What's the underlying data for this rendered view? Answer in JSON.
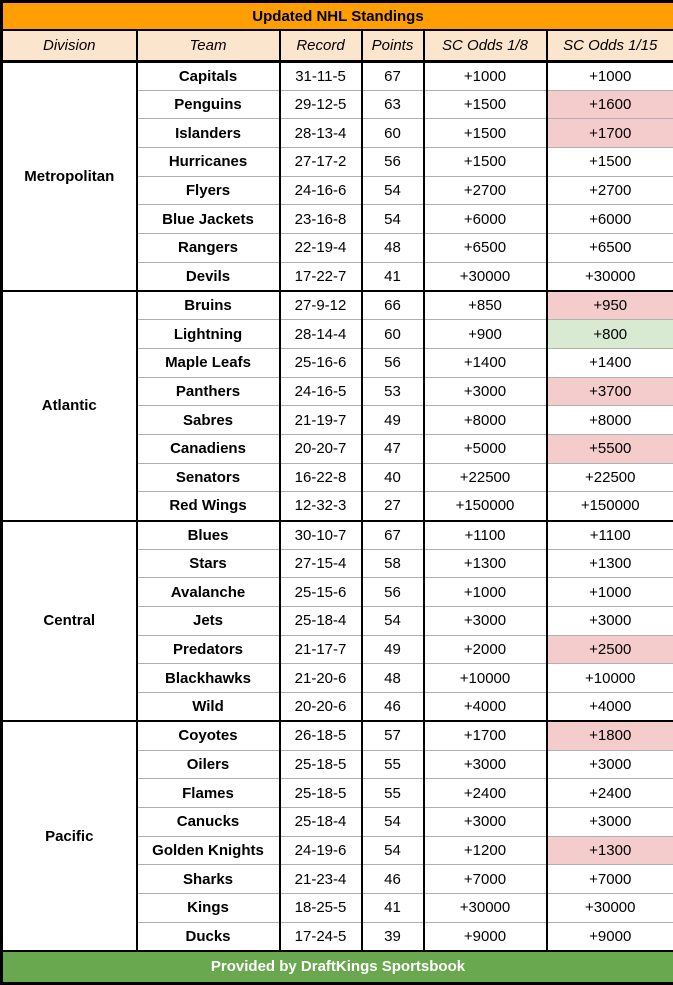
{
  "title": "Updated NHL Standings",
  "footer": "Provided by DraftKings Sportsbook",
  "columns": [
    "Division",
    "Team",
    "Record",
    "Points",
    "SC Odds 1/8",
    "SC Odds 1/15"
  ],
  "colors": {
    "title_bg": "#FF9E00",
    "header_bg": "#FCE5CD",
    "red_bg": "#F4CCCC",
    "green_bg": "#D9EAD3",
    "footer_bg": "#6AA84F",
    "border_dark": "#000000",
    "border_light": "#B0B0B0",
    "footer_text": "#FFFFFF"
  },
  "chart_data": {
    "type": "table",
    "title": "Updated NHL Standings",
    "columns": [
      "Division",
      "Team",
      "Record",
      "Points",
      "SC Odds 1/8",
      "SC Odds 1/15"
    ],
    "divisions": [
      {
        "name": "Metropolitan",
        "teams": [
          {
            "team": "Capitals",
            "record": "31-11-5",
            "points": "67",
            "sc_odds_1_8": "+1000",
            "sc_odds_1_15": "+1000",
            "odds_1_15_highlight": "none"
          },
          {
            "team": "Penguins",
            "record": "29-12-5",
            "points": "63",
            "sc_odds_1_8": "+1500",
            "sc_odds_1_15": "+1600",
            "odds_1_15_highlight": "red"
          },
          {
            "team": "Islanders",
            "record": "28-13-4",
            "points": "60",
            "sc_odds_1_8": "+1500",
            "sc_odds_1_15": "+1700",
            "odds_1_15_highlight": "red"
          },
          {
            "team": "Hurricanes",
            "record": "27-17-2",
            "points": "56",
            "sc_odds_1_8": "+1500",
            "sc_odds_1_15": "+1500",
            "odds_1_15_highlight": "none"
          },
          {
            "team": "Flyers",
            "record": "24-16-6",
            "points": "54",
            "sc_odds_1_8": "+2700",
            "sc_odds_1_15": "+2700",
            "odds_1_15_highlight": "none"
          },
          {
            "team": "Blue Jackets",
            "record": "23-16-8",
            "points": "54",
            "sc_odds_1_8": "+6000",
            "sc_odds_1_15": "+6000",
            "odds_1_15_highlight": "none"
          },
          {
            "team": "Rangers",
            "record": "22-19-4",
            "points": "48",
            "sc_odds_1_8": "+6500",
            "sc_odds_1_15": "+6500",
            "odds_1_15_highlight": "none"
          },
          {
            "team": "Devils",
            "record": "17-22-7",
            "points": "41",
            "sc_odds_1_8": "+30000",
            "sc_odds_1_15": "+30000",
            "odds_1_15_highlight": "none"
          }
        ]
      },
      {
        "name": "Atlantic",
        "teams": [
          {
            "team": "Bruins",
            "record": "27-9-12",
            "points": "66",
            "sc_odds_1_8": "+850",
            "sc_odds_1_15": "+950",
            "odds_1_15_highlight": "red"
          },
          {
            "team": "Lightning",
            "record": "28-14-4",
            "points": "60",
            "sc_odds_1_8": "+900",
            "sc_odds_1_15": "+800",
            "odds_1_15_highlight": "green"
          },
          {
            "team": "Maple Leafs",
            "record": "25-16-6",
            "points": "56",
            "sc_odds_1_8": "+1400",
            "sc_odds_1_15": "+1400",
            "odds_1_15_highlight": "none"
          },
          {
            "team": "Panthers",
            "record": "24-16-5",
            "points": "53",
            "sc_odds_1_8": "+3000",
            "sc_odds_1_15": "+3700",
            "odds_1_15_highlight": "red"
          },
          {
            "team": "Sabres",
            "record": "21-19-7",
            "points": "49",
            "sc_odds_1_8": "+8000",
            "sc_odds_1_15": "+8000",
            "odds_1_15_highlight": "none"
          },
          {
            "team": "Canadiens",
            "record": "20-20-7",
            "points": "47",
            "sc_odds_1_8": "+5000",
            "sc_odds_1_15": "+5500",
            "odds_1_15_highlight": "red"
          },
          {
            "team": "Senators",
            "record": "16-22-8",
            "points": "40",
            "sc_odds_1_8": "+22500",
            "sc_odds_1_15": "+22500",
            "odds_1_15_highlight": "none"
          },
          {
            "team": "Red Wings",
            "record": "12-32-3",
            "points": "27",
            "sc_odds_1_8": "+150000",
            "sc_odds_1_15": "+150000",
            "odds_1_15_highlight": "none"
          }
        ]
      },
      {
        "name": "Central",
        "teams": [
          {
            "team": "Blues",
            "record": "30-10-7",
            "points": "67",
            "sc_odds_1_8": "+1100",
            "sc_odds_1_15": "+1100",
            "odds_1_15_highlight": "none"
          },
          {
            "team": "Stars",
            "record": "27-15-4",
            "points": "58",
            "sc_odds_1_8": "+1300",
            "sc_odds_1_15": "+1300",
            "odds_1_15_highlight": "none"
          },
          {
            "team": "Avalanche",
            "record": "25-15-6",
            "points": "56",
            "sc_odds_1_8": "+1000",
            "sc_odds_1_15": "+1000",
            "odds_1_15_highlight": "none"
          },
          {
            "team": "Jets",
            "record": "25-18-4",
            "points": "54",
            "sc_odds_1_8": "+3000",
            "sc_odds_1_15": "+3000",
            "odds_1_15_highlight": "none"
          },
          {
            "team": "Predators",
            "record": "21-17-7",
            "points": "49",
            "sc_odds_1_8": "+2000",
            "sc_odds_1_15": "+2500",
            "odds_1_15_highlight": "red"
          },
          {
            "team": "Blackhawks",
            "record": "21-20-6",
            "points": "48",
            "sc_odds_1_8": "+10000",
            "sc_odds_1_15": "+10000",
            "odds_1_15_highlight": "none"
          },
          {
            "team": "Wild",
            "record": "20-20-6",
            "points": "46",
            "sc_odds_1_8": "+4000",
            "sc_odds_1_15": "+4000",
            "odds_1_15_highlight": "none"
          }
        ]
      },
      {
        "name": "Pacific",
        "teams": [
          {
            "team": "Coyotes",
            "record": "26-18-5",
            "points": "57",
            "sc_odds_1_8": "+1700",
            "sc_odds_1_15": "+1800",
            "odds_1_15_highlight": "red"
          },
          {
            "team": "Oilers",
            "record": "25-18-5",
            "points": "55",
            "sc_odds_1_8": "+3000",
            "sc_odds_1_15": "+3000",
            "odds_1_15_highlight": "none"
          },
          {
            "team": "Flames",
            "record": "25-18-5",
            "points": "55",
            "sc_odds_1_8": "+2400",
            "sc_odds_1_15": "+2400",
            "odds_1_15_highlight": "none"
          },
          {
            "team": "Canucks",
            "record": "25-18-4",
            "points": "54",
            "sc_odds_1_8": "+3000",
            "sc_odds_1_15": "+3000",
            "odds_1_15_highlight": "none"
          },
          {
            "team": "Golden Knights",
            "record": "24-19-6",
            "points": "54",
            "sc_odds_1_8": "+1200",
            "sc_odds_1_15": "+1300",
            "odds_1_15_highlight": "red"
          },
          {
            "team": "Sharks",
            "record": "21-23-4",
            "points": "46",
            "sc_odds_1_8": "+7000",
            "sc_odds_1_15": "+7000",
            "odds_1_15_highlight": "none"
          },
          {
            "team": "Kings",
            "record": "18-25-5",
            "points": "41",
            "sc_odds_1_8": "+30000",
            "sc_odds_1_15": "+30000",
            "odds_1_15_highlight": "none"
          },
          {
            "team": "Ducks",
            "record": "17-24-5",
            "points": "39",
            "sc_odds_1_8": "+9000",
            "sc_odds_1_15": "+9000",
            "odds_1_15_highlight": "none"
          }
        ]
      }
    ]
  }
}
